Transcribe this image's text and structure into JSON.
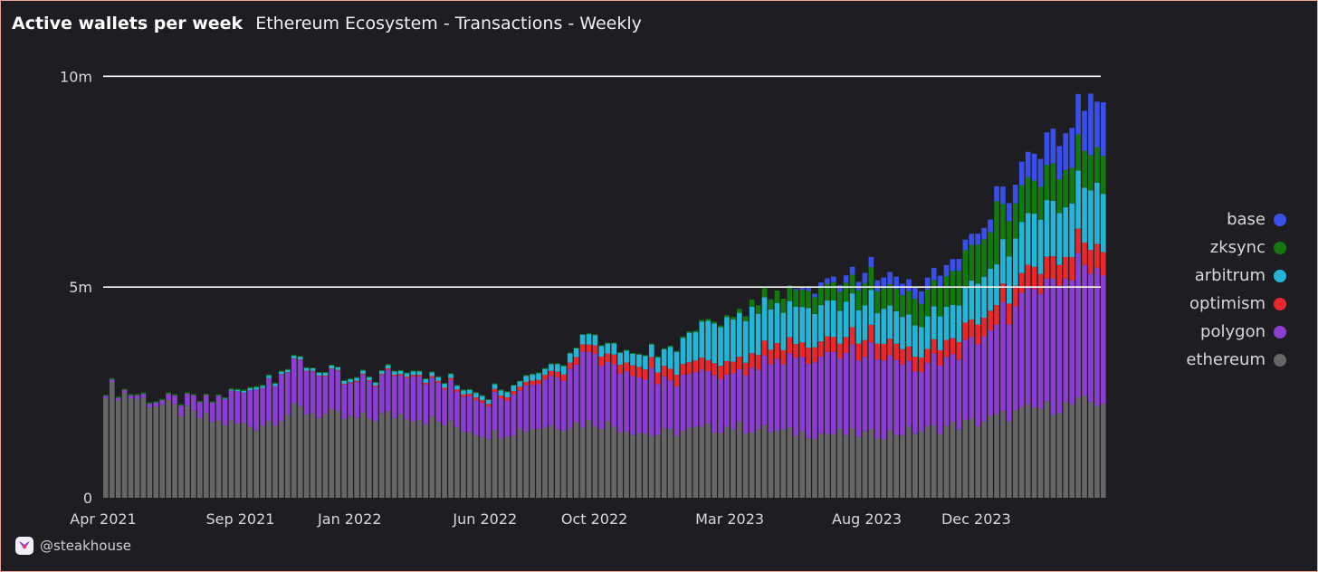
{
  "header": {
    "title": "Active wallets per week",
    "subtitle": "Ethereum Ecosystem - Transactions - Weekly"
  },
  "footer": {
    "handle": "@steakhouse",
    "logo_icon": "steakhouse-logo-icon"
  },
  "colors": {
    "background": "#1e1e22",
    "border": "#e8a898",
    "gridline": "#ffffff"
  },
  "chart_data": {
    "type": "bar",
    "stacked": true,
    "title": "Active wallets per week",
    "subtitle": "Ethereum Ecosystem - Transactions - Weekly",
    "xlabel": "",
    "ylabel": "",
    "ylim": [
      0,
      10500000
    ],
    "yticks": [
      0,
      5000000,
      10000000
    ],
    "ytick_labels": [
      "0",
      "5m",
      "10m"
    ],
    "xlim": [
      "2021-04-01",
      "2024-04-18"
    ],
    "xticks": [
      "2021-04-01",
      "2021-09-01",
      "2022-01-01",
      "2022-06-01",
      "2022-10-01",
      "2023-03-01",
      "2023-08-01",
      "2023-12-01"
    ],
    "xtick_labels": [
      "Apr 2021",
      "Sep 2021",
      "Jan 2022",
      "Jun 2022",
      "Oct 2022",
      "Mar 2023",
      "Aug 2023",
      "Dec 2023"
    ],
    "grid": true,
    "legend_position": "right",
    "series": [
      {
        "name": "ethereum",
        "color": "#666666",
        "points": [
          [
            "2021-04-01",
            2600000
          ],
          [
            "2021-06-01",
            2200000
          ],
          [
            "2021-08-01",
            1800000
          ],
          [
            "2021-09-15",
            1700000
          ],
          [
            "2021-11-01",
            2100000
          ],
          [
            "2022-01-01",
            1850000
          ],
          [
            "2022-03-01",
            2000000
          ],
          [
            "2022-06-01",
            1500000
          ],
          [
            "2022-08-01",
            1700000
          ],
          [
            "2022-10-01",
            1800000
          ],
          [
            "2022-12-01",
            1500000
          ],
          [
            "2023-03-01",
            1700000
          ],
          [
            "2023-05-01",
            1550000
          ],
          [
            "2023-08-01",
            1500000
          ],
          [
            "2023-10-01",
            1600000
          ],
          [
            "2023-12-01",
            1800000
          ],
          [
            "2024-02-01",
            2100000
          ],
          [
            "2024-04-18",
            2300000
          ]
        ]
      },
      {
        "name": "polygon",
        "color": "#8b3fcf",
        "points": [
          [
            "2021-04-01",
            50000
          ],
          [
            "2021-06-01",
            100000
          ],
          [
            "2021-08-01",
            500000
          ],
          [
            "2021-09-15",
            900000
          ],
          [
            "2021-11-01",
            1100000
          ],
          [
            "2022-01-01",
            800000
          ],
          [
            "2022-03-01",
            1000000
          ],
          [
            "2022-06-01",
            800000
          ],
          [
            "2022-08-01",
            1100000
          ],
          [
            "2022-10-01",
            1600000
          ],
          [
            "2022-12-01",
            1200000
          ],
          [
            "2023-03-01",
            1300000
          ],
          [
            "2023-05-01",
            1700000
          ],
          [
            "2023-08-01",
            1900000
          ],
          [
            "2023-10-01",
            1500000
          ],
          [
            "2023-12-01",
            2000000
          ],
          [
            "2024-02-01",
            2900000
          ],
          [
            "2024-04-18",
            3300000
          ]
        ]
      },
      {
        "name": "optimism",
        "color": "#e8282a",
        "points": [
          [
            "2021-04-01",
            0
          ],
          [
            "2021-06-01",
            0
          ],
          [
            "2021-08-01",
            0
          ],
          [
            "2021-09-15",
            0
          ],
          [
            "2021-11-01",
            10000
          ],
          [
            "2022-01-01",
            20000
          ],
          [
            "2022-03-01",
            30000
          ],
          [
            "2022-06-01",
            60000
          ],
          [
            "2022-08-01",
            100000
          ],
          [
            "2022-10-01",
            200000
          ],
          [
            "2022-12-01",
            250000
          ],
          [
            "2023-03-01",
            300000
          ],
          [
            "2023-05-01",
            350000
          ],
          [
            "2023-08-01",
            400000
          ],
          [
            "2023-10-01",
            350000
          ],
          [
            "2023-12-01",
            450000
          ],
          [
            "2024-02-01",
            500000
          ],
          [
            "2024-04-18",
            550000
          ]
        ]
      },
      {
        "name": "arbitrum",
        "color": "#25b4d3",
        "points": [
          [
            "2021-04-01",
            0
          ],
          [
            "2021-06-01",
            0
          ],
          [
            "2021-08-01",
            0
          ],
          [
            "2021-09-15",
            50000
          ],
          [
            "2021-11-01",
            60000
          ],
          [
            "2022-01-01",
            70000
          ],
          [
            "2022-03-01",
            80000
          ],
          [
            "2022-06-01",
            100000
          ],
          [
            "2022-08-01",
            150000
          ],
          [
            "2022-10-01",
            250000
          ],
          [
            "2022-12-01",
            300000
          ],
          [
            "2023-03-01",
            1100000
          ],
          [
            "2023-05-01",
            900000
          ],
          [
            "2023-08-01",
            800000
          ],
          [
            "2023-10-01",
            700000
          ],
          [
            "2023-12-01",
            900000
          ],
          [
            "2024-02-01",
            1200000
          ],
          [
            "2024-04-18",
            1400000
          ]
        ]
      },
      {
        "name": "zksync",
        "color": "#12780f",
        "points": [
          [
            "2021-04-01",
            30000
          ],
          [
            "2021-06-01",
            30000
          ],
          [
            "2021-08-01",
            30000
          ],
          [
            "2021-09-15",
            30000
          ],
          [
            "2021-11-01",
            20000
          ],
          [
            "2022-01-01",
            20000
          ],
          [
            "2022-03-01",
            20000
          ],
          [
            "2022-06-01",
            20000
          ],
          [
            "2022-08-01",
            20000
          ],
          [
            "2022-10-01",
            20000
          ],
          [
            "2022-12-01",
            20000
          ],
          [
            "2023-03-01",
            50000
          ],
          [
            "2023-05-01",
            350000
          ],
          [
            "2023-08-01",
            500000
          ],
          [
            "2023-10-01",
            600000
          ],
          [
            "2023-12-01",
            900000
          ],
          [
            "2024-02-01",
            800000
          ],
          [
            "2024-04-18",
            900000
          ]
        ]
      },
      {
        "name": "base",
        "color": "#3a4ee8",
        "points": [
          [
            "2021-04-01",
            0
          ],
          [
            "2021-06-01",
            0
          ],
          [
            "2021-08-01",
            0
          ],
          [
            "2021-09-15",
            0
          ],
          [
            "2021-11-01",
            0
          ],
          [
            "2022-01-01",
            0
          ],
          [
            "2022-03-01",
            0
          ],
          [
            "2022-06-01",
            0
          ],
          [
            "2022-08-01",
            0
          ],
          [
            "2022-10-01",
            0
          ],
          [
            "2022-12-01",
            0
          ],
          [
            "2023-03-01",
            0
          ],
          [
            "2023-05-01",
            0
          ],
          [
            "2023-08-01",
            250000
          ],
          [
            "2023-10-01",
            300000
          ],
          [
            "2023-12-01",
            250000
          ],
          [
            "2024-02-01",
            600000
          ],
          [
            "2024-04-18",
            1200000
          ]
        ]
      }
    ],
    "spikes": [
      {
        "date": "2022-09-13",
        "series": "polygon",
        "add": 400000
      },
      {
        "date": "2022-11-29",
        "series": "polygon",
        "add": 500000
      },
      {
        "date": "2023-12-19",
        "series": "zksync",
        "add": 700000
      },
      {
        "date": "2024-04-02",
        "series": "base",
        "add": 300000
      }
    ],
    "legend": [
      "base",
      "zksync",
      "arbitrum",
      "optimism",
      "polygon",
      "ethereum"
    ]
  }
}
